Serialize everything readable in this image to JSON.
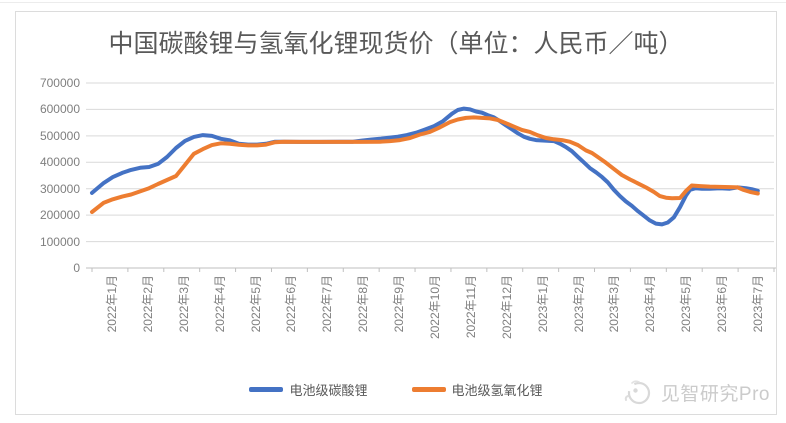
{
  "watermark": {
    "text": "见智研究Pro"
  },
  "chart_data": {
    "type": "line",
    "title": "中国碳酸锂与氢氧化锂现货价（单位：人民币／吨）",
    "xlabel": "",
    "ylabel": "",
    "ylim": [
      0,
      700000
    ],
    "y_ticks": [
      0,
      100000,
      200000,
      300000,
      400000,
      500000,
      600000,
      700000
    ],
    "x_unit": "month",
    "x_range_months": 19,
    "x_tick_labels": [
      "2022年1月",
      "2022年2月",
      "2022年3月",
      "2022年4月",
      "2022年5月",
      "2022年6月",
      "2022年7月",
      "2022年8月",
      "2022年9月",
      "2022年10月",
      "2022年11月",
      "2022年12月",
      "2023年1月",
      "2023年2月",
      "2023年3月",
      "2023年4月",
      "2023年5月",
      "2023年6月",
      "2023年7月"
    ],
    "grid": true,
    "legend_position": "bottom",
    "series": [
      {
        "name": "电池级碳酸锂",
        "color": "#4472C4",
        "points": [
          [
            0,
            284000
          ],
          [
            0.33,
            322000
          ],
          [
            0.58,
            344000
          ],
          [
            0.84,
            360000
          ],
          [
            1.09,
            371000
          ],
          [
            1.34,
            379000
          ],
          [
            1.59,
            382000
          ],
          [
            1.84,
            394000
          ],
          [
            2.09,
            420000
          ],
          [
            2.34,
            454000
          ],
          [
            2.59,
            481000
          ],
          [
            2.84,
            496000
          ],
          [
            3.09,
            503000
          ],
          [
            3.34,
            500000
          ],
          [
            3.59,
            489000
          ],
          [
            3.84,
            483000
          ],
          [
            4.09,
            470000
          ],
          [
            4.35,
            467000
          ],
          [
            4.6,
            467000
          ],
          [
            4.85,
            470000
          ],
          [
            5.1,
            478000
          ],
          [
            5.35,
            478000
          ],
          [
            5.79,
            477000
          ],
          [
            6.35,
            477000
          ],
          [
            6.91,
            478000
          ],
          [
            7.27,
            478000
          ],
          [
            7.52,
            482000
          ],
          [
            7.77,
            486000
          ],
          [
            8.02,
            489000
          ],
          [
            8.27,
            493000
          ],
          [
            8.52,
            497000
          ],
          [
            8.77,
            503000
          ],
          [
            9.03,
            512000
          ],
          [
            9.28,
            524000
          ],
          [
            9.53,
            537000
          ],
          [
            9.78,
            556000
          ],
          [
            10.03,
            584000
          ],
          [
            10.19,
            598000
          ],
          [
            10.36,
            603000
          ],
          [
            10.53,
            600000
          ],
          [
            10.7,
            592000
          ],
          [
            10.86,
            588000
          ],
          [
            11.03,
            578000
          ],
          [
            11.2,
            570000
          ],
          [
            11.36,
            556000
          ],
          [
            11.53,
            540000
          ],
          [
            11.7,
            525000
          ],
          [
            11.86,
            510000
          ],
          [
            12.03,
            497000
          ],
          [
            12.2,
            489000
          ],
          [
            12.37,
            484000
          ],
          [
            12.62,
            482000
          ],
          [
            12.87,
            480000
          ],
          [
            13.04,
            470000
          ],
          [
            13.2,
            458000
          ],
          [
            13.37,
            442000
          ],
          [
            13.54,
            420000
          ],
          [
            13.7,
            400000
          ],
          [
            13.87,
            378000
          ],
          [
            14.04,
            362000
          ],
          [
            14.21,
            344000
          ],
          [
            14.37,
            324000
          ],
          [
            14.54,
            296000
          ],
          [
            14.71,
            272000
          ],
          [
            14.87,
            252000
          ],
          [
            15.04,
            235000
          ],
          [
            15.21,
            215000
          ],
          [
            15.38,
            197000
          ],
          [
            15.54,
            180000
          ],
          [
            15.71,
            168000
          ],
          [
            15.88,
            165000
          ],
          [
            16.04,
            172000
          ],
          [
            16.21,
            192000
          ],
          [
            16.38,
            230000
          ],
          [
            16.55,
            275000
          ],
          [
            16.66,
            296000
          ],
          [
            16.82,
            302000
          ],
          [
            16.99,
            300000
          ],
          [
            17.21,
            300000
          ],
          [
            17.49,
            302000
          ],
          [
            17.77,
            300000
          ],
          [
            17.99,
            305000
          ],
          [
            18.22,
            302000
          ],
          [
            18.38,
            298000
          ],
          [
            18.55,
            292000
          ]
        ]
      },
      {
        "name": "电池级氢氧化锂",
        "color": "#ED7D31",
        "points": [
          [
            0,
            212000
          ],
          [
            0.33,
            247000
          ],
          [
            0.58,
            260000
          ],
          [
            0.84,
            270000
          ],
          [
            1.09,
            278000
          ],
          [
            1.34,
            290000
          ],
          [
            1.59,
            302000
          ],
          [
            1.84,
            318000
          ],
          [
            2.09,
            333000
          ],
          [
            2.34,
            348000
          ],
          [
            2.59,
            390000
          ],
          [
            2.84,
            432000
          ],
          [
            3.09,
            450000
          ],
          [
            3.34,
            465000
          ],
          [
            3.59,
            472000
          ],
          [
            3.84,
            470000
          ],
          [
            4.09,
            466000
          ],
          [
            4.35,
            464000
          ],
          [
            4.6,
            464000
          ],
          [
            4.85,
            467000
          ],
          [
            5.1,
            476000
          ],
          [
            5.35,
            478000
          ],
          [
            5.79,
            477000
          ],
          [
            6.35,
            477000
          ],
          [
            6.91,
            477000
          ],
          [
            7.47,
            477000
          ],
          [
            8.02,
            478000
          ],
          [
            8.3,
            480000
          ],
          [
            8.58,
            484000
          ],
          [
            8.86,
            492000
          ],
          [
            9.14,
            505000
          ],
          [
            9.41,
            515000
          ],
          [
            9.69,
            532000
          ],
          [
            9.97,
            552000
          ],
          [
            10.19,
            562000
          ],
          [
            10.42,
            568000
          ],
          [
            10.64,
            570000
          ],
          [
            10.86,
            568000
          ],
          [
            11.09,
            566000
          ],
          [
            11.31,
            560000
          ],
          [
            11.53,
            548000
          ],
          [
            11.75,
            535000
          ],
          [
            11.98,
            522000
          ],
          [
            12.2,
            515000
          ],
          [
            12.42,
            502000
          ],
          [
            12.65,
            492000
          ],
          [
            12.87,
            487000
          ],
          [
            13.09,
            484000
          ],
          [
            13.31,
            478000
          ],
          [
            13.54,
            465000
          ],
          [
            13.76,
            445000
          ],
          [
            13.93,
            435000
          ],
          [
            14.09,
            420000
          ],
          [
            14.32,
            398000
          ],
          [
            14.54,
            375000
          ],
          [
            14.76,
            352000
          ],
          [
            14.99,
            335000
          ],
          [
            15.21,
            320000
          ],
          [
            15.43,
            305000
          ],
          [
            15.65,
            288000
          ],
          [
            15.82,
            272000
          ],
          [
            15.99,
            266000
          ],
          [
            16.16,
            264000
          ],
          [
            16.38,
            265000
          ],
          [
            16.55,
            292000
          ],
          [
            16.71,
            312000
          ],
          [
            16.94,
            310000
          ],
          [
            17.21,
            308000
          ],
          [
            17.49,
            307000
          ],
          [
            17.77,
            306000
          ],
          [
            17.99,
            305000
          ],
          [
            18.16,
            295000
          ],
          [
            18.33,
            288000
          ],
          [
            18.55,
            282000
          ]
        ]
      }
    ]
  }
}
